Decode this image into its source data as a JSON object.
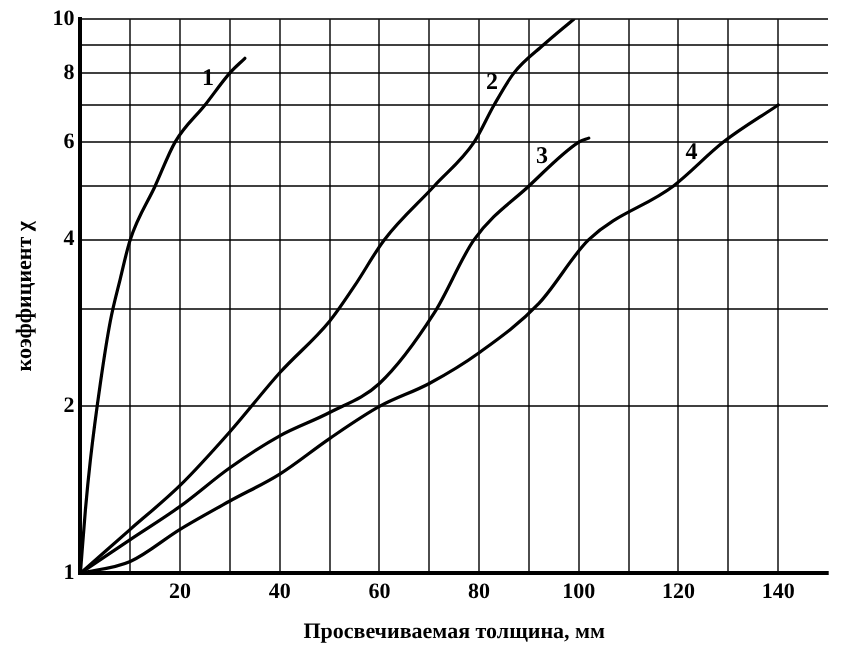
{
  "chart_data": {
    "type": "line",
    "xlabel": "Просвечиваемая толщина, мм",
    "ylabel": "коэффициент χ",
    "xlim": [
      0,
      150
    ],
    "xticks": [
      {
        "value": 10,
        "label": null
      },
      20,
      {
        "value": 30,
        "label": null
      },
      40,
      {
        "value": 50,
        "label": null
      },
      60,
      {
        "value": 70,
        "label": null
      },
      80,
      {
        "value": 90,
        "label": null
      },
      100,
      {
        "value": 110,
        "label": null
      },
      120,
      {
        "value": 130,
        "label": null
      },
      140
    ],
    "ylim": [
      1,
      10
    ],
    "yticks": [
      1,
      2,
      {
        "value": 3,
        "label": null
      },
      4,
      {
        "value": 5,
        "label": null
      },
      6,
      {
        "value": 7,
        "label": null
      },
      8,
      {
        "value": 9,
        "label": null
      },
      10
    ],
    "log": "y",
    "grid": true,
    "legend": false,
    "marker": "none",
    "line_style": "solid",
    "series": [
      {
        "color": "#000000",
        "x": [
          0,
          1,
          2,
          4,
          6,
          8,
          10,
          15,
          19,
          25,
          30,
          33
        ],
        "values": [
          1,
          1.3,
          1.6,
          2.2,
          2.85,
          3.4,
          4,
          5,
          6,
          7,
          8,
          8.5
        ]
      },
      {
        "color": "#000000",
        "x": [
          0,
          10,
          20,
          30,
          40,
          50,
          55,
          61,
          71,
          79,
          83,
          87,
          93,
          99
        ],
        "values": [
          1,
          1.2,
          1.44,
          1.8,
          2.3,
          2.85,
          3.3,
          4,
          5,
          6,
          7,
          8,
          9,
          10
        ]
      },
      {
        "color": "#000000",
        "x": [
          0,
          10,
          20,
          30,
          40,
          50,
          60,
          71,
          79,
          90,
          100,
          102
        ],
        "values": [
          1,
          1.15,
          1.32,
          1.55,
          1.77,
          1.95,
          2.2,
          2.95,
          4,
          5,
          6,
          6.1
        ]
      },
      {
        "color": "#000000",
        "x": [
          0,
          10,
          20,
          30,
          40,
          50,
          60,
          70,
          80,
          92,
          102,
          119,
          129,
          140
        ],
        "values": [
          1,
          1.05,
          1.2,
          1.35,
          1.51,
          1.75,
          2,
          2.2,
          2.5,
          3.07,
          4,
          5,
          6,
          7
        ]
      }
    ],
    "annotations": [
      {
        "text": "1",
        "x": 28,
        "y": 7.6
      },
      {
        "text": "2",
        "x": 85,
        "y": 7.5
      },
      {
        "text": "3",
        "x": 95,
        "y": 5.5
      },
      {
        "text": "4",
        "x": 125,
        "y": 5.6
      }
    ]
  }
}
